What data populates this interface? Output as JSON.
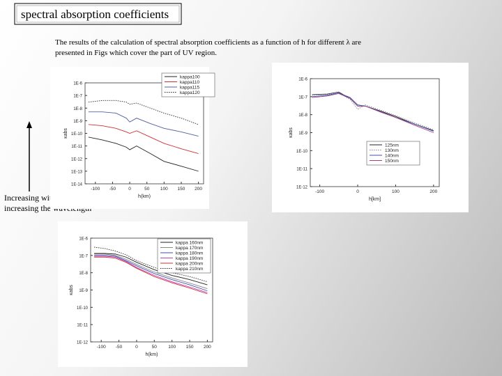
{
  "slide": {
    "title": "spectral absorption coefficients",
    "text": [
      "The results of the calculation of spectral absorption coefficients as a function of h for different λ are",
      "presented in Figs which cover the part of UV region."
    ],
    "annotation": [
      "Increasing with",
      "increasing the wavelength"
    ]
  },
  "chart_data": [
    {
      "type": "line",
      "xlabel": "h(km)",
      "ylabel": "κabs",
      "log_y": true,
      "x": [
        -120,
        -80,
        -40,
        -10,
        0,
        20,
        60,
        100,
        150,
        200
      ],
      "xlim": [
        -130,
        215
      ],
      "xticks": [
        -100,
        -50,
        0,
        50,
        100,
        150,
        200
      ],
      "ylim": [
        1e-14,
        1e-06
      ],
      "yticks": [
        {
          "value": 1e-06,
          "label": "1E-6"
        },
        {
          "value": 1e-07,
          "label": "1E-7"
        },
        {
          "value": 1e-08,
          "label": "1E-8"
        },
        {
          "value": 1e-09,
          "label": "1E-9"
        },
        {
          "value": 1e-10,
          "label": "1E-10"
        },
        {
          "value": 1e-11,
          "label": "1E-11"
        },
        {
          "value": 1e-12,
          "label": "1E-12"
        },
        {
          "value": 1e-13,
          "label": "1E-13"
        },
        {
          "value": 1e-14,
          "label": "1E-14"
        }
      ],
      "series": [
        {
          "name": "kappa100",
          "color": "#222222",
          "dashed": false,
          "values": [
            5e-11,
            3e-11,
            1.6e-11,
            8e-12,
            5e-12,
            1e-11,
            2.5e-12,
            6e-13,
            2.5e-13,
            1e-13
          ]
        },
        {
          "name": "kappa110",
          "color": "#d03030",
          "dashed": false,
          "values": [
            5e-10,
            4e-10,
            2.5e-10,
            1.3e-10,
            1e-10,
            1.6e-10,
            5e-11,
            1.6e-11,
            6e-12,
            2.5e-12
          ]
        },
        {
          "name": "kappa115",
          "color": "#5060a0",
          "dashed": false,
          "values": [
            5e-09,
            5e-09,
            4e-09,
            1.6e-09,
            8e-10,
            1.6e-09,
            6e-10,
            2.5e-10,
            1.3e-10,
            6e-11
          ]
        },
        {
          "name": "kappa120",
          "color": "#222222",
          "dashed": true,
          "values": [
            3e-08,
            4e-08,
            4e-08,
            3e-08,
            2e-08,
            2.5e-08,
            1e-08,
            4e-09,
            1.6e-09,
            5e-10
          ]
        }
      ]
    },
    {
      "type": "line",
      "xlabel": "h[km]",
      "ylabel": "κabs",
      "log_y": true,
      "x": [
        -120,
        -80,
        -50,
        -20,
        0,
        20,
        60,
        100,
        150,
        200
      ],
      "xlim": [
        -125,
        215
      ],
      "xticks": [
        -100,
        0,
        100,
        200
      ],
      "ylim": [
        1e-12,
        1e-06
      ],
      "yticks": [
        {
          "value": 1e-06,
          "label": "1E-6"
        },
        {
          "value": 1e-07,
          "label": "1E-7"
        },
        {
          "value": 1e-08,
          "label": "1E-8"
        },
        {
          "value": 1e-09,
          "label": "1E-9"
        },
        {
          "value": 1e-10,
          "label": "1E-10"
        },
        {
          "value": 1e-11,
          "label": "1E-11"
        },
        {
          "value": 1e-12,
          "label": "1E-12"
        }
      ],
      "series": [
        {
          "name": "125nm",
          "color": "#222222",
          "dashed": false,
          "values": [
            1.3e-07,
            1.4e-07,
            1.8e-07,
            8e-08,
            3e-08,
            3e-08,
            1.6e-08,
            8e-09,
            3e-09,
            1.3e-09
          ]
        },
        {
          "name": "130nm",
          "color": "#888888",
          "dashed": true,
          "values": [
            1.2e-07,
            1.3e-07,
            1.6e-07,
            7e-08,
            2e-08,
            3.5e-08,
            1.8e-08,
            9e-09,
            3.5e-09,
            1.5e-09
          ]
        },
        {
          "name": "140nm",
          "color": "#4050b0",
          "dashed": false,
          "values": [
            1e-07,
            1.2e-07,
            1.6e-07,
            9e-08,
            3.5e-08,
            3e-08,
            1.5e-08,
            7e-09,
            3e-09,
            1.2e-09
          ]
        },
        {
          "name": "150nm",
          "color": "#a04080",
          "dashed": false,
          "values": [
            9e-08,
            1.1e-07,
            1.5e-07,
            8e-08,
            3e-08,
            3e-08,
            1.4e-08,
            7e-09,
            2.6e-09,
            1e-09
          ]
        }
      ]
    },
    {
      "type": "line",
      "xlabel": "h(km)",
      "ylabel": "κabs",
      "log_y": true,
      "x": [
        -120,
        -90,
        -60,
        -30,
        0,
        50,
        100,
        150,
        200
      ],
      "xlim": [
        -130,
        215
      ],
      "xticks": [
        -100,
        -50,
        0,
        50,
        100,
        150,
        200
      ],
      "ylim": [
        1e-12,
        1e-06
      ],
      "yticks": [
        {
          "value": 1e-06,
          "label": "1E-6"
        },
        {
          "value": 1e-07,
          "label": "1E-7"
        },
        {
          "value": 1e-08,
          "label": "1E-8"
        },
        {
          "value": 1e-09,
          "label": "1E-9"
        },
        {
          "value": 1e-10,
          "label": "1E-10"
        },
        {
          "value": 1e-11,
          "label": "1E-11"
        },
        {
          "value": 1e-12,
          "label": "1E-12"
        }
      ],
      "series": [
        {
          "name": "kappa 160nm",
          "color": "#222222",
          "dashed": false,
          "values": [
            1.3e-07,
            1.3e-07,
            1.2e-07,
            8e-08,
            4e-08,
            1.5e-08,
            7e-09,
            4e-09,
            2e-09
          ]
        },
        {
          "name": "kappa 170nm",
          "color": "#888888",
          "dashed": false,
          "values": [
            1.2e-07,
            1.2e-07,
            1e-07,
            6e-08,
            3e-08,
            1.1e-08,
            5e-09,
            2.5e-09,
            1.2e-09
          ]
        },
        {
          "name": "kappa 180nm",
          "color": "#4050b0",
          "dashed": false,
          "values": [
            1e-07,
            1e-07,
            9e-08,
            5e-08,
            2.5e-08,
            9e-09,
            4e-09,
            2e-09,
            9e-10
          ]
        },
        {
          "name": "kappa 190nm",
          "color": "#c040c0",
          "dashed": false,
          "values": [
            9e-08,
            9e-08,
            8e-08,
            4.5e-08,
            2e-08,
            7e-09,
            3e-09,
            1.5e-09,
            7e-10
          ]
        },
        {
          "name": "kappa 200nm",
          "color": "#d03030",
          "dashed": false,
          "values": [
            8e-08,
            8e-08,
            7e-08,
            4e-08,
            1.8e-08,
            6e-09,
            2.6e-09,
            1.3e-09,
            6e-10
          ]
        },
        {
          "name": "kappa 210nm",
          "color": "#222222",
          "dashed": true,
          "values": [
            3e-07,
            2.5e-07,
            1.8e-07,
            1.1e-07,
            5e-08,
            2e-08,
            1e-08,
            6e-09,
            3e-09
          ]
        }
      ]
    }
  ]
}
